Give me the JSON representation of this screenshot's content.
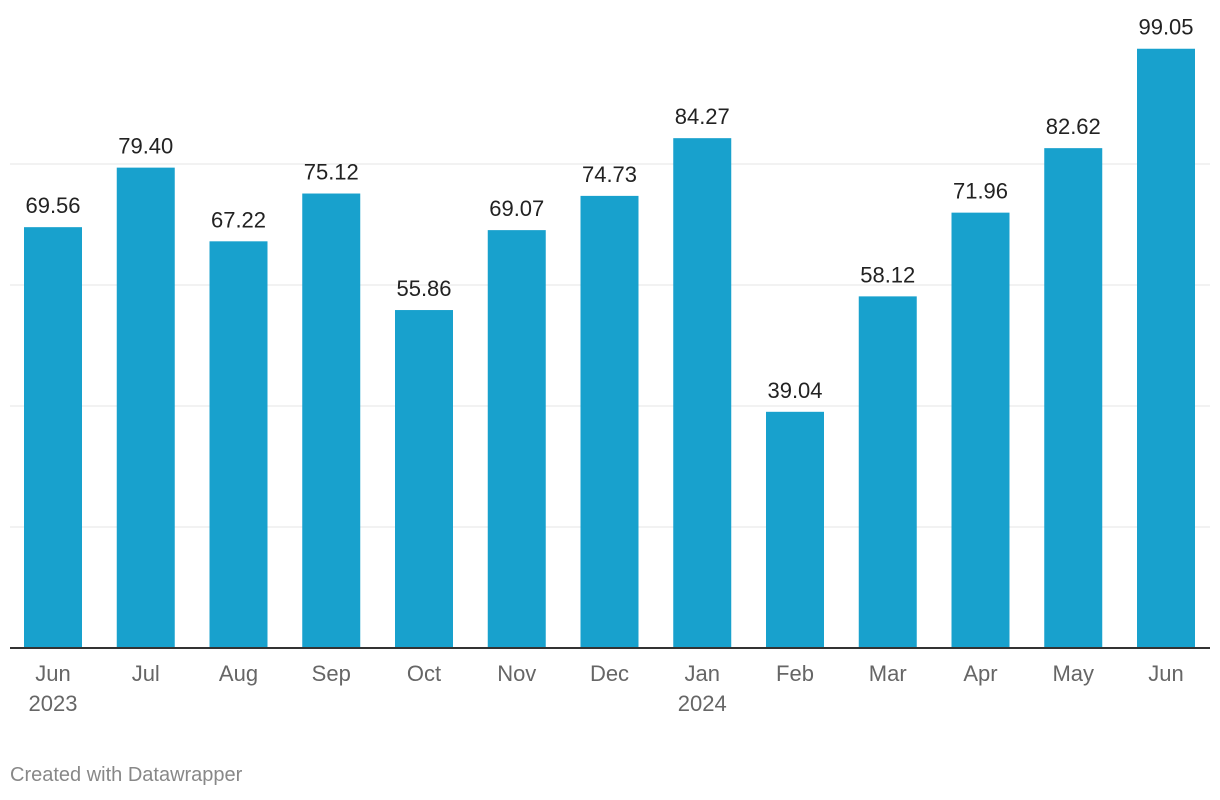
{
  "chart_data": {
    "type": "bar",
    "categories": [
      "Jun 2023",
      "Jul",
      "Aug",
      "Sep",
      "Oct",
      "Nov",
      "Dec",
      "Jan 2024",
      "Feb",
      "Mar",
      "Apr",
      "May",
      "Jun"
    ],
    "tick_labels": [
      [
        "Jun",
        "2023"
      ],
      [
        "Jul"
      ],
      [
        "Aug"
      ],
      [
        "Sep"
      ],
      [
        "Oct"
      ],
      [
        "Nov"
      ],
      [
        "Dec"
      ],
      [
        "Jan",
        "2024"
      ],
      [
        "Feb"
      ],
      [
        "Mar"
      ],
      [
        "Apr"
      ],
      [
        "May"
      ],
      [
        "Jun"
      ]
    ],
    "values": [
      69.56,
      79.4,
      67.22,
      75.12,
      55.86,
      69.07,
      74.73,
      84.27,
      39.04,
      58.12,
      71.96,
      82.62,
      99.05
    ],
    "value_labels": [
      "69.56",
      "79.40",
      "67.22",
      "75.12",
      "55.86",
      "69.07",
      "74.73",
      "84.27",
      "39.04",
      "58.12",
      "71.96",
      "82.62",
      "99.05"
    ],
    "title": "",
    "xlabel": "",
    "ylabel": "",
    "ylim": [
      0,
      100
    ],
    "gridlines": [
      20,
      40,
      60,
      80
    ],
    "grid": true,
    "legend": "none",
    "colors": {
      "bar": "#18a1cd",
      "grid": "#e5e5e5",
      "axis": "#333333",
      "tick_label": "#666666",
      "value_label": "#222222"
    }
  },
  "footer": {
    "credit": "Created with Datawrapper"
  }
}
